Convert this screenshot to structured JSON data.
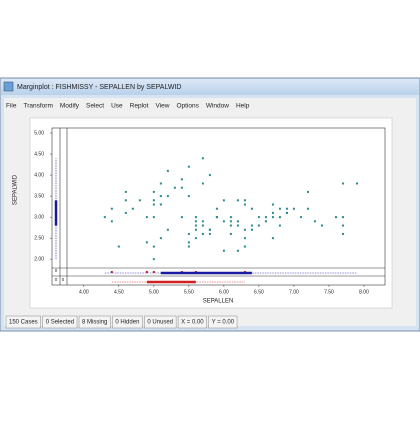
{
  "window": {
    "title": "Marginplot : FISHMISSY - SEPALLEN by SEPALWID"
  },
  "menu": [
    "File",
    "Transform",
    "Modify",
    "Select",
    "Use",
    "Replot",
    "View",
    "Options",
    "Window",
    "Help"
  ],
  "status": [
    "150 Cases",
    "0 Selected",
    "8 Missing",
    "0 Hidden",
    "0 Unused",
    "X = 0.00",
    "Y = 0.00"
  ],
  "chart_data": {
    "type": "scatter",
    "x_label": "SEPALLEN",
    "y_label": "SEPALWID",
    "xlim": [
      3.76,
      8.3
    ],
    "ylim": [
      1.79,
      5.12
    ],
    "xticks": [
      {
        "value": 4,
        "label": "4.00"
      },
      {
        "value": 4.5,
        "label": "4.50"
      },
      {
        "value": 5,
        "label": "5.00"
      },
      {
        "value": 5.5,
        "label": "5.50"
      },
      {
        "value": 6,
        "label": "6.00"
      },
      {
        "value": 6.5,
        "label": "6.50"
      },
      {
        "value": 7,
        "label": "7.00"
      },
      {
        "value": 7.5,
        "label": "7.50"
      },
      {
        "value": 8,
        "label": "8.00"
      }
    ],
    "yticks": [
      {
        "value": 2,
        "label": "2.00"
      },
      {
        "value": 2.5,
        "label": "2.50"
      },
      {
        "value": 3,
        "label": "3.00"
      },
      {
        "value": 3.5,
        "label": "3.50"
      },
      {
        "value": 4,
        "label": "4.00"
      },
      {
        "value": 4.5,
        "label": "4.50"
      },
      {
        "value": 5,
        "label": "5.00"
      }
    ],
    "color": "#2a8a8a",
    "x": [
      5.1,
      4.9,
      4.7,
      4.6,
      5.0,
      5.4,
      4.6,
      5.0,
      4.4,
      5.4,
      4.8,
      4.3,
      5.8,
      5.7,
      5.7,
      5.1,
      4.6,
      5.1,
      5.0,
      5.2,
      5.2,
      5.5,
      5.5,
      4.5,
      4.4,
      5.3,
      5.0,
      7.0,
      6.4,
      6.9,
      5.5,
      6.5,
      5.7,
      6.3,
      4.9,
      6.6,
      5.2,
      5.0,
      5.9,
      6.0,
      6.1,
      5.6,
      6.7,
      5.6,
      5.8,
      6.2,
      5.6,
      5.9,
      6.1,
      6.3,
      6.6,
      6.8,
      6.7,
      6.0,
      5.7,
      5.5,
      5.4,
      6.0,
      6.3,
      5.5,
      6.1,
      5.8,
      5.0,
      5.6,
      5.7,
      6.2,
      5.1,
      7.1,
      6.5,
      7.6,
      7.3,
      6.7,
      7.2,
      6.4,
      6.8,
      7.7,
      7.7,
      6.9,
      5.6,
      7.7,
      6.3,
      6.7,
      7.2,
      6.2,
      6.4,
      7.4,
      7.9,
      6.1,
      7.7,
      6.3,
      6.9,
      6.8,
      6.2,
      5.9,
      5.8
    ],
    "y": [
      3.5,
      3.0,
      3.2,
      3.1,
      3.6,
      3.9,
      3.4,
      3.4,
      2.9,
      3.7,
      3.4,
      3.0,
      4.0,
      4.4,
      3.8,
      3.8,
      3.6,
      3.3,
      3.0,
      3.5,
      4.1,
      4.2,
      3.5,
      2.3,
      3.2,
      3.7,
      3.3,
      3.2,
      3.2,
      3.1,
      2.3,
      2.8,
      2.8,
      3.3,
      2.4,
      2.9,
      2.7,
      2.0,
      3.0,
      2.2,
      2.9,
      2.9,
      3.1,
      3.0,
      2.7,
      2.2,
      2.5,
      3.2,
      2.8,
      2.5,
      3.0,
      2.8,
      3.0,
      2.9,
      2.6,
      2.4,
      3.0,
      3.4,
      2.3,
      2.6,
      3.0,
      2.6,
      2.3,
      2.7,
      2.9,
      2.9,
      2.5,
      3.0,
      3.0,
      3.0,
      2.9,
      2.5,
      3.6,
      2.7,
      3.0,
      3.8,
      2.6,
      3.2,
      2.8,
      2.8,
      2.7,
      3.3,
      3.2,
      2.8,
      2.8,
      2.8,
      3.8,
      2.6,
      3.0,
      3.4,
      3.1,
      3.2,
      3.4,
      3.0,
      2.7
    ],
    "missing_y_at_x": [
      4.4,
      4.9,
      5.0,
      5.4,
      5.6,
      6.3
    ],
    "missing_color": "#d02020",
    "margin_counts": [
      0,
      0,
      0
    ],
    "x_boxplots": [
      {
        "color": "#1a1aa0",
        "whislo": 4.3,
        "q1": 5.1,
        "q3": 6.4,
        "whishi": 7.9
      },
      {
        "color": "#d02020",
        "whislo": 4.4,
        "q1": 4.9,
        "q3": 5.6,
        "whishi": 6.3
      }
    ],
    "y_boxplots": [
      {
        "color": "#1a1aa0",
        "whislo": 2.0,
        "q1": 2.8,
        "q3": 3.4,
        "whishi": 4.4
      }
    ]
  }
}
